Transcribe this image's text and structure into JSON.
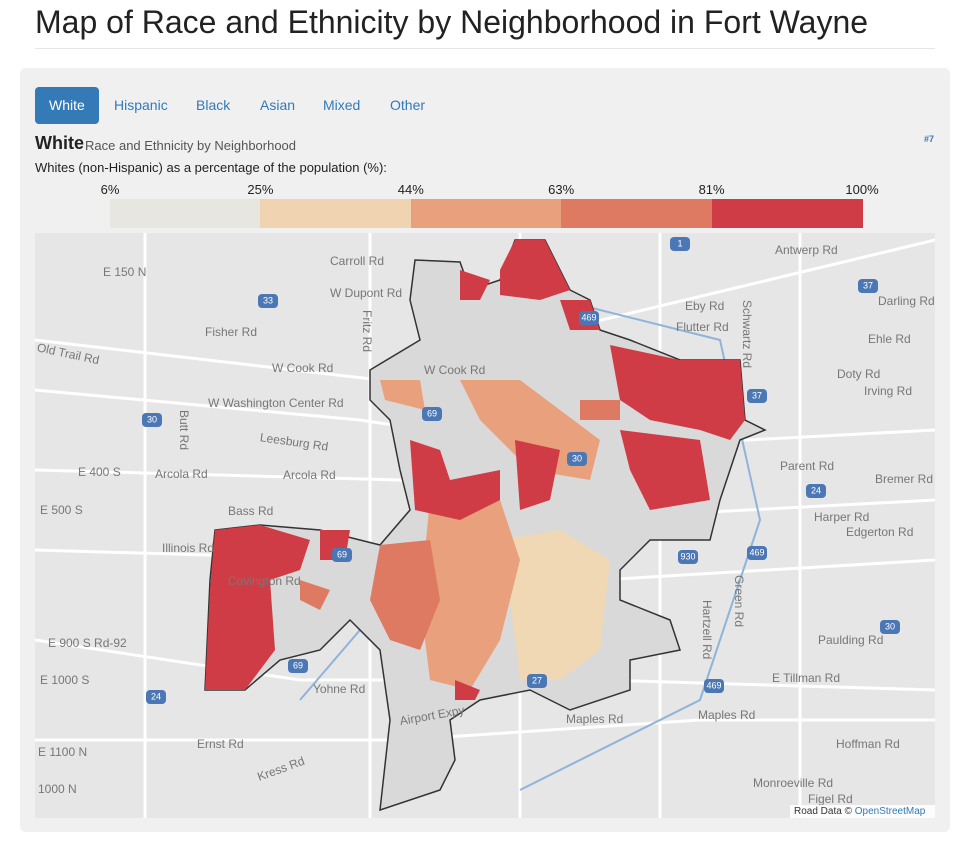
{
  "header": {
    "title": "Map of Race and Ethnicity by Neighborhood in Fort Wayne"
  },
  "tabs": [
    "White",
    "Hispanic",
    "Black",
    "Asian",
    "Mixed",
    "Other"
  ],
  "panel": {
    "heading": "White",
    "subheading": "Race and Ethnicity by Neighborhood",
    "anchor": "#7",
    "description": "Whites (non-Hispanic) as a percentage of the population (%):"
  },
  "legend": {
    "labels": [
      "6%",
      "25%",
      "44%",
      "63%",
      "81%",
      "100%"
    ]
  },
  "map": {
    "labels": [
      "E 150 N",
      "Carroll Rd",
      "W Dupont Rd",
      "Fisher Rd",
      "Old Trail Rd",
      "W Cook Rd",
      "W Cook Rd",
      "W Washington Center Rd",
      "Leesburg Rd",
      "Arcola Rd",
      "Arcola Rd",
      "Bass Rd",
      "Illinois Rd",
      "Covington Rd",
      "E 900 S Rd-92",
      "Yohne Rd",
      "Ernst Rd",
      "Kress Rd",
      "Airport Expy",
      "Antwerp Rd",
      "Eby Rd",
      "Flutter Rd",
      "Ehle Rd",
      "Doty Rd",
      "Irving Rd",
      "Parent Rd",
      "Harper Rd",
      "Edgerton Rd",
      "Paulding Rd",
      "E Tillman Rd",
      "Maples Rd",
      "Maples Rd",
      "Hoffman Rd",
      "Monroeville Rd",
      "Figel Rd",
      "Darling Rd",
      "Bremer Rd",
      "Butt Rd",
      "Schwartz Rd",
      "Hartzell Rd",
      "Green Rd",
      "Fritz Rd",
      "E 400 S",
      "E 500 S",
      "E 1000 S",
      "E 1100 N",
      "1000 N"
    ],
    "shields": [
      "69",
      "69",
      "69",
      "469",
      "469",
      "469",
      "30",
      "30",
      "30",
      "27",
      "24",
      "24",
      "37",
      "37",
      "930",
      "33",
      "1"
    ],
    "attribution": "Road Data ©",
    "attribution_link": "OpenStreetMap"
  }
}
